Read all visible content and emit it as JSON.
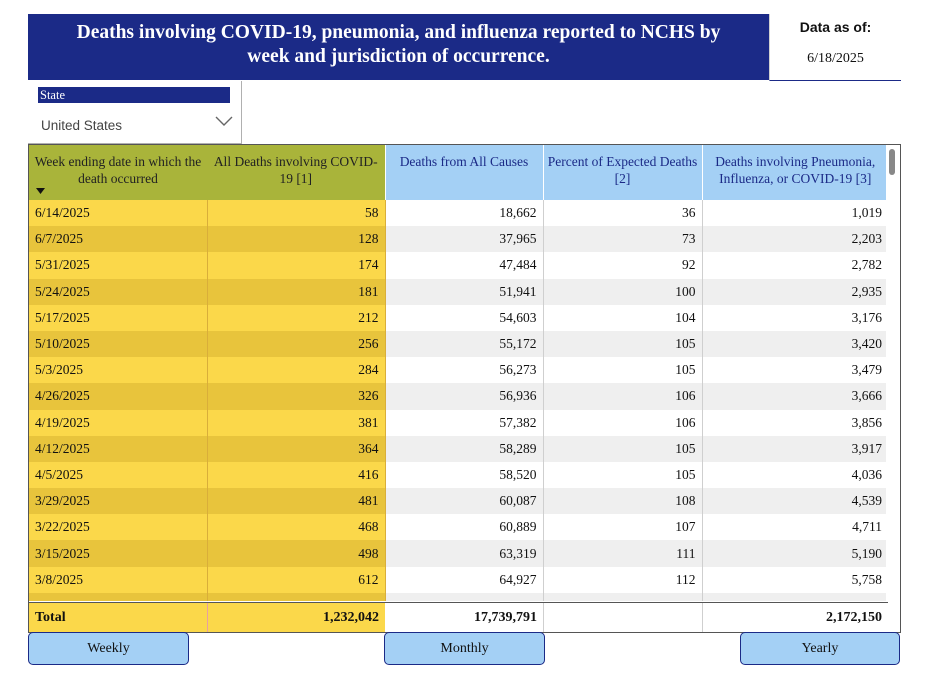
{
  "header": {
    "title_line1": "Deaths involving COVID-19, pneumonia, and influenza reported to NCHS by",
    "title_line2": "week and jurisdiction of occurrence.",
    "data_as_of_label": "Data as of:",
    "data_as_of_value": "6/18/2025"
  },
  "slicer": {
    "label": "State",
    "value": "United States",
    "icon": "chevron-down-icon"
  },
  "table": {
    "columns": [
      "Week ending date in which the death occurred",
      "All Deaths involving COVID-19 [1]",
      "Deaths from All Causes",
      "Percent of Expected Deaths [2]",
      "Deaths involving Pneumonia, Influenza, or COVID-19 [3]"
    ],
    "rows": [
      [
        "6/14/2025",
        "58",
        "18,662",
        "36",
        "1,019"
      ],
      [
        "6/7/2025",
        "128",
        "37,965",
        "73",
        "2,203"
      ],
      [
        "5/31/2025",
        "174",
        "47,484",
        "92",
        "2,782"
      ],
      [
        "5/24/2025",
        "181",
        "51,941",
        "100",
        "2,935"
      ],
      [
        "5/17/2025",
        "212",
        "54,603",
        "104",
        "3,176"
      ],
      [
        "5/10/2025",
        "256",
        "55,172",
        "105",
        "3,420"
      ],
      [
        "5/3/2025",
        "284",
        "56,273",
        "105",
        "3,479"
      ],
      [
        "4/26/2025",
        "326",
        "56,936",
        "106",
        "3,666"
      ],
      [
        "4/19/2025",
        "381",
        "57,382",
        "106",
        "3,856"
      ],
      [
        "4/12/2025",
        "364",
        "58,289",
        "105",
        "3,917"
      ],
      [
        "4/5/2025",
        "416",
        "58,520",
        "105",
        "4,036"
      ],
      [
        "3/29/2025",
        "481",
        "60,087",
        "108",
        "4,539"
      ],
      [
        "3/22/2025",
        "468",
        "60,889",
        "107",
        "4,711"
      ],
      [
        "3/15/2025",
        "498",
        "63,319",
        "111",
        "5,190"
      ],
      [
        "3/8/2025",
        "612",
        "64,927",
        "112",
        "5,758"
      ]
    ],
    "total": {
      "label": "Total",
      "covid": "1,232,042",
      "all_causes": "17,739,791",
      "percent": "",
      "pic": "2,172,150"
    }
  },
  "buttons": {
    "weekly": "Weekly",
    "monthly": "Monthly",
    "yearly": "Yearly"
  },
  "colors": {
    "title_bg": "#1b2a87",
    "highlight_yellow": "#fbd84a",
    "header_olive": "#a9b43a",
    "header_blue": "#a4d0f5"
  }
}
